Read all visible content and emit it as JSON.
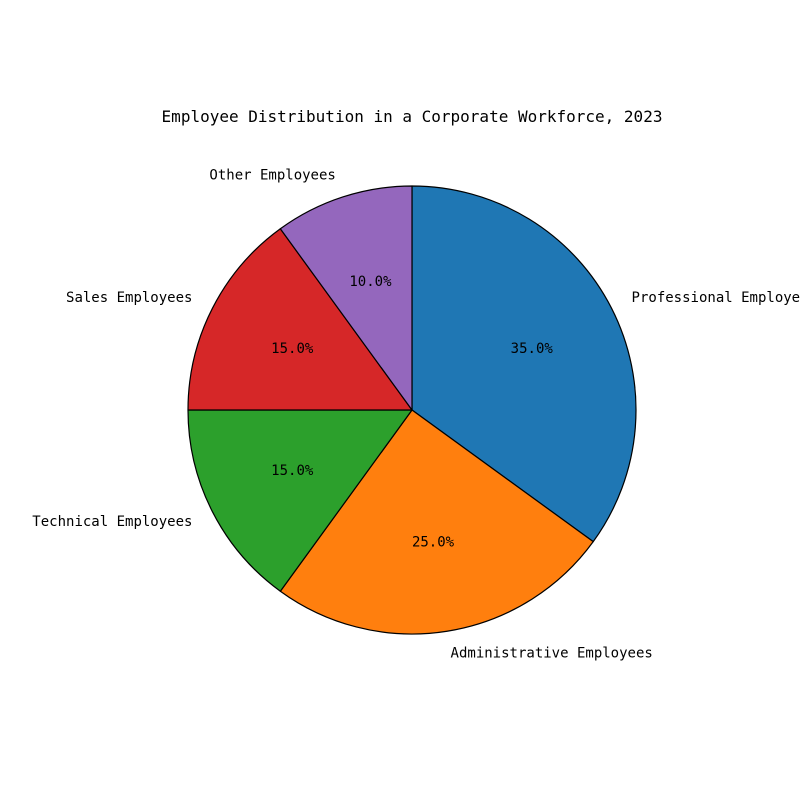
{
  "chart_data": {
    "type": "pie",
    "title": "Employee Distribution in a Corporate Workforce, 2023",
    "start_angle_deg": 90,
    "direction": "clockwise",
    "slices": [
      {
        "label": "Professional Employees",
        "value": 35.0,
        "pct_label": "35.0%",
        "color": "#1f77b4"
      },
      {
        "label": "Administrative Employees",
        "value": 25.0,
        "pct_label": "25.0%",
        "color": "#ff7f0e"
      },
      {
        "label": "Technical Employees",
        "value": 15.0,
        "pct_label": "15.0%",
        "color": "#2ca02c"
      },
      {
        "label": "Sales Employees",
        "value": 15.0,
        "pct_label": "15.0%",
        "color": "#d62728"
      },
      {
        "label": "Other Employees",
        "value": 10.0,
        "pct_label": "10.0%",
        "color": "#9467bd"
      }
    ]
  }
}
